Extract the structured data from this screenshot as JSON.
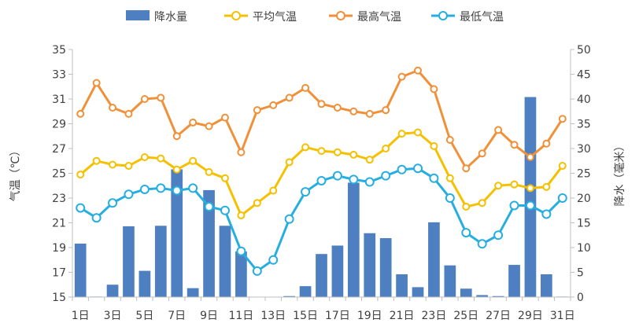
{
  "chart_data": {
    "type": "bar+line",
    "categories": [
      "1日",
      "2日",
      "3日",
      "4日",
      "5日",
      "6日",
      "7日",
      "8日",
      "9日",
      "10日",
      "11日",
      "12日",
      "13日",
      "14日",
      "15日",
      "16日",
      "17日",
      "18日",
      "19日",
      "20日",
      "21日",
      "22日",
      "23日",
      "24日",
      "25日",
      "26日",
      "27日",
      "28日",
      "29日",
      "30日",
      "31日"
    ],
    "x_tick_labels": [
      "1日",
      "3日",
      "5日",
      "7日",
      "9日",
      "11日",
      "13日",
      "15日",
      "17日",
      "19日",
      "21日",
      "23日",
      "25日",
      "27日",
      "29日",
      "31日"
    ],
    "bar_series": {
      "name": "降水量",
      "axis": "right",
      "color": "#4e7fc0",
      "values": [
        10.8,
        0.1,
        2.5,
        14.3,
        5.3,
        14.4,
        25.8,
        1.8,
        21.6,
        14.4,
        9.2,
        0,
        0,
        0.2,
        2.2,
        8.7,
        10.4,
        23.1,
        12.9,
        11.9,
        4.6,
        2.0,
        15.1,
        6.4,
        1.7,
        0.4,
        0.2,
        6.5,
        40.4,
        4.6,
        0.1
      ]
    },
    "line_series": [
      {
        "name": "平均气温",
        "axis": "left",
        "color": "#f5c000",
        "values": [
          24.9,
          26.0,
          25.7,
          25.6,
          26.3,
          26.2,
          25.3,
          26.0,
          25.1,
          24.6,
          21.6,
          22.6,
          23.6,
          25.9,
          27.1,
          26.8,
          26.7,
          26.5,
          26.1,
          27.0,
          28.2,
          28.3,
          27.2,
          24.6,
          22.3,
          22.6,
          24.0,
          24.1,
          23.8,
          23.9,
          25.6
        ]
      },
      {
        "name": "最高气温",
        "axis": "left",
        "color": "#f0913a",
        "values": [
          29.8,
          32.3,
          30.3,
          29.8,
          31.0,
          31.1,
          28.0,
          29.1,
          28.8,
          29.5,
          26.7,
          30.1,
          30.5,
          31.1,
          31.9,
          30.6,
          30.3,
          30.0,
          29.8,
          30.1,
          32.8,
          33.3,
          31.8,
          27.7,
          25.4,
          26.6,
          28.5,
          27.3,
          26.3,
          27.4,
          29.4
        ]
      },
      {
        "name": "最低气温",
        "axis": "left",
        "color": "#27aee0",
        "values": [
          22.2,
          21.4,
          22.6,
          23.3,
          23.7,
          23.8,
          23.6,
          23.8,
          22.3,
          22.0,
          18.7,
          17.1,
          18.0,
          21.3,
          23.5,
          24.4,
          24.8,
          24.5,
          24.3,
          24.8,
          25.3,
          25.4,
          24.6,
          23.0,
          20.2,
          19.3,
          20.0,
          22.4,
          22.4,
          21.7,
          23.0
        ]
      }
    ],
    "left_axis": {
      "title": "气温（℃）",
      "min": 15,
      "max": 35,
      "ticks": [
        15,
        17,
        19,
        21,
        23,
        25,
        27,
        29,
        31,
        33,
        35
      ]
    },
    "right_axis": {
      "title": "降水（毫米）",
      "min": 0,
      "max": 50,
      "ticks": [
        0,
        5,
        10,
        15,
        20,
        25,
        30,
        35,
        40,
        45,
        50
      ]
    },
    "grid": "horizontal-none",
    "legend_position": "top-center"
  }
}
